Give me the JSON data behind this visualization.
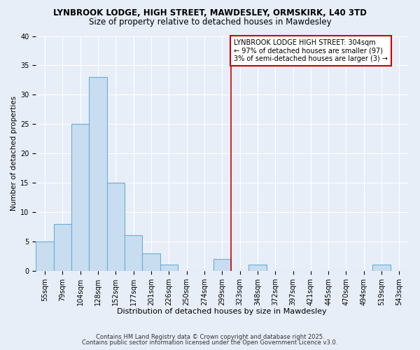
{
  "title": "LYNBROOK LODGE, HIGH STREET, MAWDESLEY, ORMSKIRK, L40 3TD",
  "subtitle": "Size of property relative to detached houses in Mawdesley",
  "xlabel": "Distribution of detached houses by size in Mawdesley",
  "ylabel": "Number of detached properties",
  "bin_labels": [
    "55sqm",
    "79sqm",
    "104sqm",
    "128sqm",
    "152sqm",
    "177sqm",
    "201sqm",
    "226sqm",
    "250sqm",
    "274sqm",
    "299sqm",
    "323sqm",
    "348sqm",
    "372sqm",
    "397sqm",
    "421sqm",
    "445sqm",
    "470sqm",
    "494sqm",
    "519sqm",
    "543sqm"
  ],
  "bar_values": [
    5,
    8,
    25,
    33,
    15,
    6,
    3,
    1,
    0,
    0,
    2,
    0,
    1,
    0,
    0,
    0,
    0,
    0,
    0,
    1,
    0
  ],
  "bar_color": "#c8ddf0",
  "bar_edge_color": "#6baed6",
  "vline_x": 10.5,
  "vline_color": "#cc0000",
  "annotation_text": "LYNBROOK LODGE HIGH STREET: 304sqm\n← 97% of detached houses are smaller (97)\n3% of semi-detached houses are larger (3) →",
  "ylim": [
    0,
    40
  ],
  "yticks": [
    0,
    5,
    10,
    15,
    20,
    25,
    30,
    35,
    40
  ],
  "background_color": "#e8eef8",
  "grid_color": "#ffffff",
  "footer1": "Contains HM Land Registry data © Crown copyright and database right 2025.",
  "footer2": "Contains public sector information licensed under the Open Government Licence v3.0.",
  "title_fontsize": 8.5,
  "subtitle_fontsize": 8.5,
  "xlabel_fontsize": 8,
  "ylabel_fontsize": 7.5,
  "tick_fontsize": 7,
  "annotation_fontsize": 7,
  "footer_fontsize": 6
}
